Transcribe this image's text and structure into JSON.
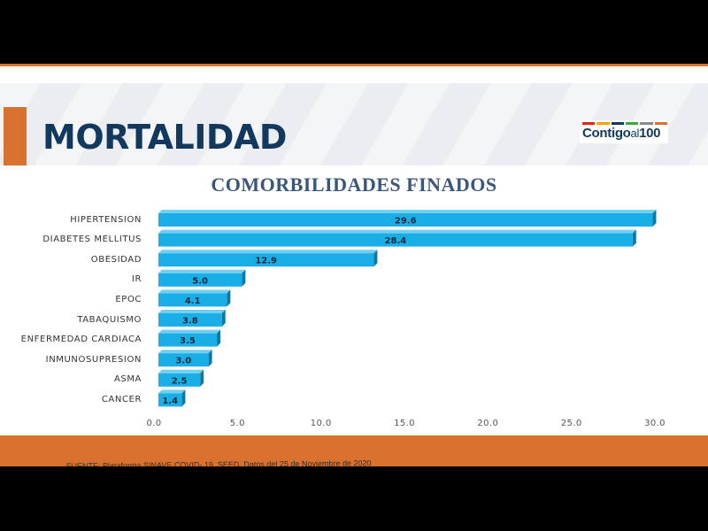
{
  "slide": {
    "title": "MORTALIDAD",
    "logo": {
      "text_main": "Contigo",
      "text_small": "al",
      "text_num": "100"
    },
    "source": "FUENTE: Plataforma SINAVE COVID- 19, SEED. Datos del 25 de Noviembre de 2020"
  },
  "colors": {
    "accent_orange": "#d8722e",
    "title_navy": "#12385e",
    "bar_fill": "#1aaee6",
    "bar_side": "#0b78a8",
    "bar_top": "#6fd0f3"
  },
  "chart_data": {
    "type": "bar",
    "orientation": "horizontal",
    "title": "COMORBILIDADES FINADOS",
    "categories": [
      "HIPERTENSION",
      "DIABETES MELLITUS",
      "OBESIDAD",
      "IR",
      "EPOC",
      "TABAQUISMO",
      "ENFERMEDAD CARDIACA",
      "INMUNOSUPRESION",
      "ASMA",
      "CANCER"
    ],
    "values": [
      29.6,
      28.4,
      12.9,
      5.0,
      4.1,
      3.8,
      3.5,
      3.0,
      2.5,
      1.4
    ],
    "value_labels": [
      "29.6",
      "28.4",
      "12.9",
      "5.0",
      "4.1",
      "3.8",
      "3.5",
      "3.0",
      "2.5",
      "1.4"
    ],
    "xlim": [
      0,
      30
    ],
    "x_ticks": [
      "0.0",
      "5.0",
      "10.0",
      "15.0",
      "20.0",
      "25.0",
      "30.0"
    ],
    "xlabel": "",
    "ylabel": "",
    "grid": false,
    "legend": "none"
  }
}
